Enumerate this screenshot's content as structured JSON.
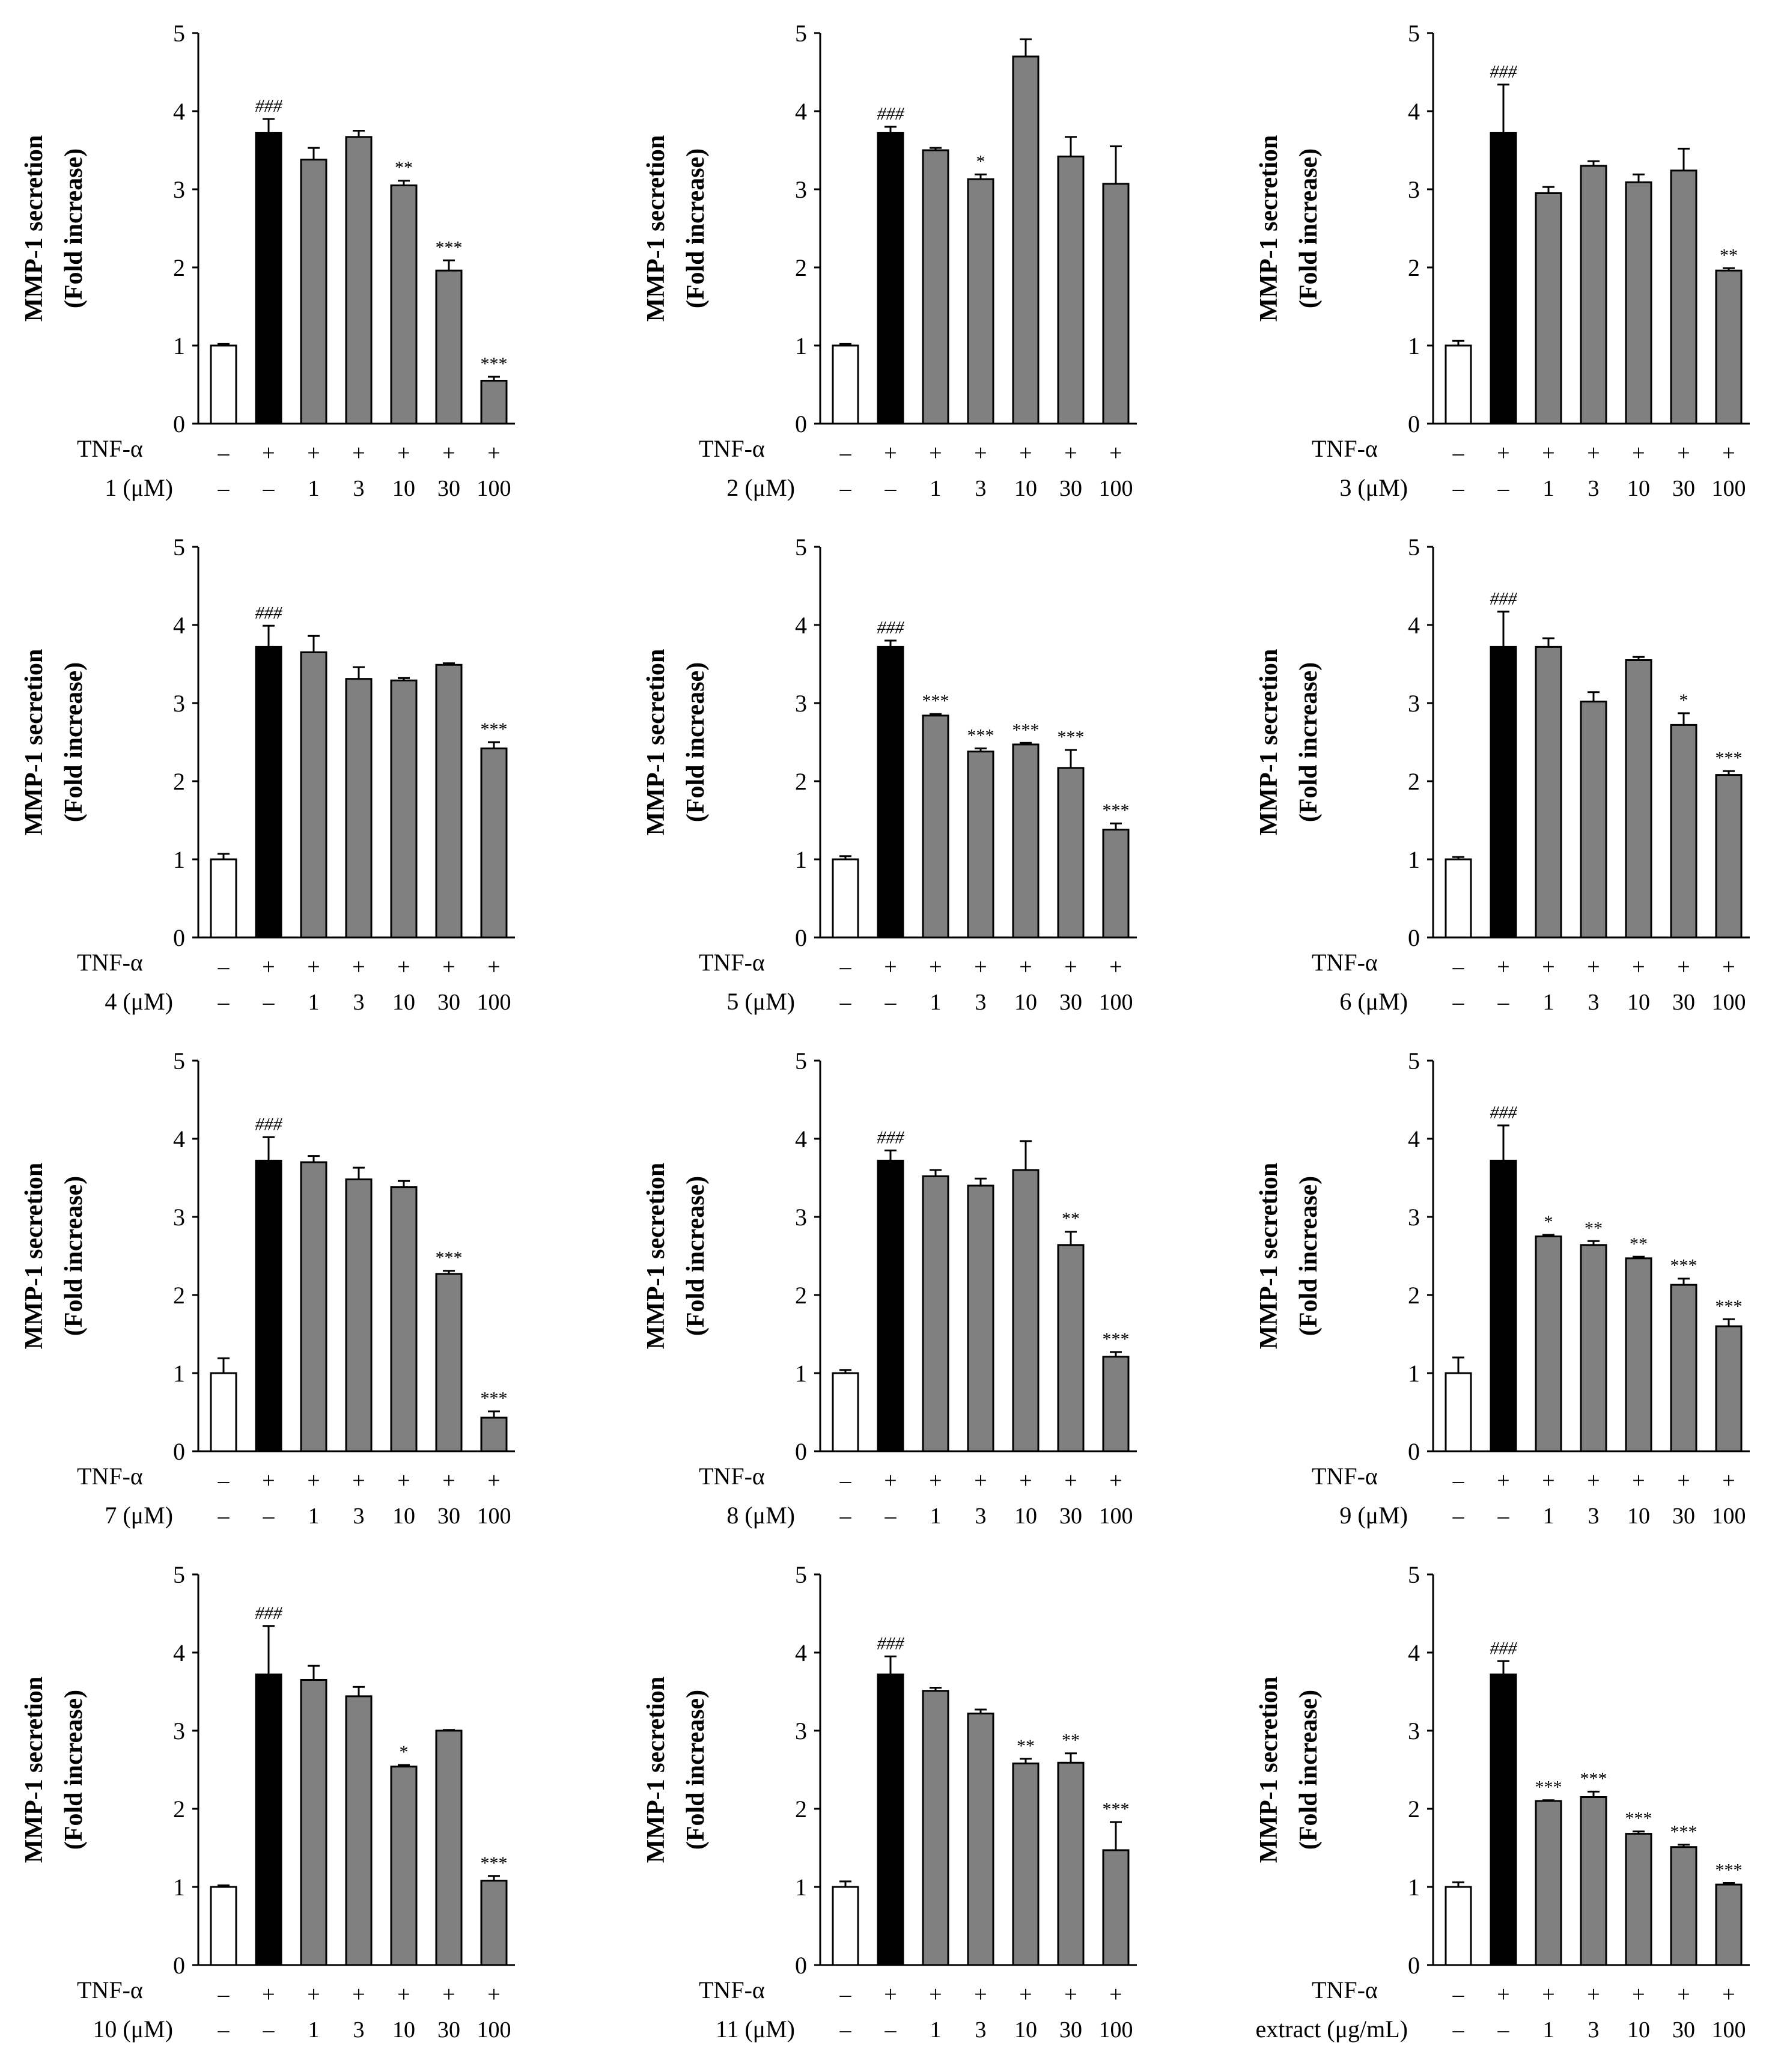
{
  "figure": {
    "ylabel_line1": "MMP-1 secretion",
    "ylabel_line2": "(Fold increase)",
    "y_ticks": [
      "0",
      "1",
      "2",
      "3",
      "4",
      "5"
    ],
    "tnf_row_label": "TNF-α",
    "tnf_row_values": [
      "–",
      "+",
      "+",
      "+",
      "+",
      "+",
      "+"
    ],
    "bar_colors": {
      "control": "#ffffff",
      "tnf": "#000000",
      "treated": "#808080"
    }
  },
  "chart_data": [
    {
      "type": "bar",
      "title": "",
      "treatment_label": "1 (μM)",
      "ylabel": "MMP-1 secretion (Fold increase)",
      "ylim": [
        0,
        5
      ],
      "categories": [
        "–",
        "–",
        "1",
        "3",
        "10",
        "30",
        "100"
      ],
      "values": [
        1.0,
        3.72,
        3.38,
        3.67,
        3.05,
        1.96,
        0.55
      ],
      "errors": [
        0.02,
        0.18,
        0.15,
        0.08,
        0.06,
        0.13,
        0.05
      ],
      "significance": [
        "",
        "###",
        "",
        "",
        "**",
        "***",
        "***"
      ]
    },
    {
      "type": "bar",
      "title": "",
      "treatment_label": "2 (μM)",
      "ylabel": "MMP-1 secretion (Fold increase)",
      "ylim": [
        0,
        5
      ],
      "categories": [
        "–",
        "–",
        "1",
        "3",
        "10",
        "30",
        "100"
      ],
      "values": [
        1.0,
        3.72,
        3.5,
        3.13,
        4.7,
        3.42,
        3.07
      ],
      "errors": [
        0.02,
        0.08,
        0.03,
        0.06,
        0.22,
        0.25,
        0.48
      ],
      "significance": [
        "",
        "###",
        "",
        "*",
        "",
        "",
        ""
      ]
    },
    {
      "type": "bar",
      "title": "",
      "treatment_label": "3 (μM)",
      "ylabel": "MMP-1 secretion (Fold increase)",
      "ylim": [
        0,
        5
      ],
      "categories": [
        "–",
        "–",
        "1",
        "3",
        "10",
        "30",
        "100"
      ],
      "values": [
        1.0,
        3.72,
        2.95,
        3.3,
        3.09,
        3.24,
        1.96
      ],
      "errors": [
        0.06,
        0.62,
        0.08,
        0.06,
        0.1,
        0.28,
        0.03
      ],
      "significance": [
        "",
        "###",
        "",
        "",
        "",
        "",
        "**"
      ]
    },
    {
      "type": "bar",
      "title": "",
      "treatment_label": "4 (μM)",
      "ylabel": "MMP-1 secretion (Fold increase)",
      "ylim": [
        0,
        5
      ],
      "categories": [
        "–",
        "–",
        "1",
        "3",
        "10",
        "30",
        "100"
      ],
      "values": [
        1.0,
        3.72,
        3.65,
        3.31,
        3.29,
        3.49,
        2.42
      ],
      "errors": [
        0.07,
        0.27,
        0.21,
        0.15,
        0.03,
        0.02,
        0.08
      ],
      "significance": [
        "",
        "###",
        "",
        "",
        "",
        "",
        "***"
      ]
    },
    {
      "type": "bar",
      "title": "",
      "treatment_label": "5 (μM)",
      "ylabel": "MMP-1 secretion (Fold increase)",
      "ylim": [
        0,
        5
      ],
      "categories": [
        "–",
        "–",
        "1",
        "3",
        "10",
        "30",
        "100"
      ],
      "values": [
        1.0,
        3.72,
        2.84,
        2.38,
        2.47,
        2.17,
        1.38
      ],
      "errors": [
        0.04,
        0.08,
        0.02,
        0.04,
        0.02,
        0.23,
        0.08
      ],
      "significance": [
        "",
        "###",
        "***",
        "***",
        "***",
        "***",
        "***"
      ]
    },
    {
      "type": "bar",
      "title": "",
      "treatment_label": "6 (μM)",
      "ylabel": "MMP-1 secretion (Fold increase)",
      "ylim": [
        0,
        5
      ],
      "categories": [
        "–",
        "–",
        "1",
        "3",
        "10",
        "30",
        "100"
      ],
      "values": [
        1.0,
        3.72,
        3.72,
        3.02,
        3.55,
        2.72,
        2.08
      ],
      "errors": [
        0.03,
        0.45,
        0.11,
        0.12,
        0.04,
        0.15,
        0.05
      ],
      "significance": [
        "",
        "###",
        "",
        "",
        "",
        "*",
        "***"
      ]
    },
    {
      "type": "bar",
      "title": "",
      "treatment_label": "7 (μM)",
      "ylabel": "MMP-1 secretion (Fold increase)",
      "ylim": [
        0,
        5
      ],
      "categories": [
        "–",
        "–",
        "1",
        "3",
        "10",
        "30",
        "100"
      ],
      "values": [
        1.0,
        3.72,
        3.7,
        3.48,
        3.38,
        2.27,
        0.43
      ],
      "errors": [
        0.19,
        0.3,
        0.08,
        0.15,
        0.08,
        0.04,
        0.08
      ],
      "significance": [
        "",
        "###",
        "",
        "",
        "",
        "***",
        "***"
      ]
    },
    {
      "type": "bar",
      "title": "",
      "treatment_label": "8 (μM)",
      "ylabel": "MMP-1 secretion (Fold increase)",
      "ylim": [
        0,
        5
      ],
      "categories": [
        "–",
        "–",
        "1",
        "3",
        "10",
        "30",
        "100"
      ],
      "values": [
        1.0,
        3.72,
        3.52,
        3.4,
        3.6,
        2.64,
        1.21
      ],
      "errors": [
        0.04,
        0.13,
        0.08,
        0.09,
        0.37,
        0.17,
        0.06
      ],
      "significance": [
        "",
        "###",
        "",
        "",
        "",
        "**",
        "***"
      ]
    },
    {
      "type": "bar",
      "title": "",
      "treatment_label": "9 (μM)",
      "ylabel": "MMP-1 secretion (Fold increase)",
      "ylim": [
        0,
        5
      ],
      "categories": [
        "–",
        "–",
        "1",
        "3",
        "10",
        "30",
        "100"
      ],
      "values": [
        1.0,
        3.72,
        2.75,
        2.64,
        2.47,
        2.13,
        1.6
      ],
      "errors": [
        0.2,
        0.45,
        0.02,
        0.05,
        0.02,
        0.08,
        0.09
      ],
      "significance": [
        "",
        "###",
        "*",
        "**",
        "**",
        "***",
        "***"
      ]
    },
    {
      "type": "bar",
      "title": "",
      "treatment_label": "10 (μM)",
      "ylabel": "MMP-1 secretion (Fold increase)",
      "ylim": [
        0,
        5
      ],
      "categories": [
        "–",
        "–",
        "1",
        "3",
        "10",
        "30",
        "100"
      ],
      "values": [
        1.0,
        3.72,
        3.65,
        3.44,
        2.54,
        3.0,
        1.08
      ],
      "errors": [
        0.02,
        0.62,
        0.18,
        0.12,
        0.02,
        0.01,
        0.06
      ],
      "significance": [
        "",
        "###",
        "",
        "",
        "*",
        "",
        "***"
      ]
    },
    {
      "type": "bar",
      "title": "",
      "treatment_label": "11 (μM)",
      "ylabel": "MMP-1 secretion (Fold increase)",
      "ylim": [
        0,
        5
      ],
      "categories": [
        "–",
        "–",
        "1",
        "3",
        "10",
        "30",
        "100"
      ],
      "values": [
        1.0,
        3.72,
        3.51,
        3.22,
        2.58,
        2.59,
        1.47
      ],
      "errors": [
        0.07,
        0.23,
        0.04,
        0.05,
        0.06,
        0.12,
        0.36
      ],
      "significance": [
        "",
        "###",
        "",
        "",
        "**",
        "**",
        "***"
      ]
    },
    {
      "type": "bar",
      "title": "",
      "treatment_label": "extract (μg/mL)",
      "ylabel": "MMP-1 secretion (Fold increase)",
      "ylim": [
        0,
        5
      ],
      "categories": [
        "–",
        "–",
        "1",
        "3",
        "10",
        "30",
        "100"
      ],
      "values": [
        1.0,
        3.72,
        2.1,
        2.15,
        1.68,
        1.51,
        1.03
      ],
      "errors": [
        0.06,
        0.17,
        0.01,
        0.07,
        0.03,
        0.03,
        0.02
      ],
      "significance": [
        "",
        "###",
        "***",
        "***",
        "***",
        "***",
        "***"
      ]
    }
  ]
}
